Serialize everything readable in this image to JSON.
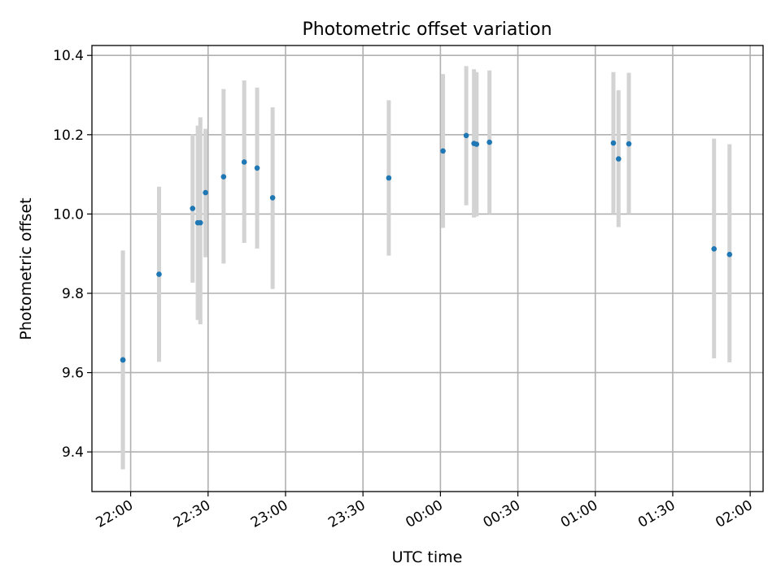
{
  "chart_data": {
    "type": "scatter",
    "title": "Photometric offset variation",
    "xlabel": "UTC time",
    "ylabel": "Photometric offset",
    "x_unit": "UTC time of day (hours since 22:00)",
    "xlim": [
      "21:45",
      "02:05"
    ],
    "ylim": [
      9.3,
      10.425
    ],
    "x_ticks": [
      {
        "label": "22:00",
        "value": "22:00"
      },
      {
        "label": "22:30",
        "value": "22:30"
      },
      {
        "label": "23:00",
        "value": "23:00"
      },
      {
        "label": "23:30",
        "value": "23:30"
      },
      {
        "label": "00:00",
        "value": "00:00"
      },
      {
        "label": "00:30",
        "value": "00:30"
      },
      {
        "label": "01:00",
        "value": "01:00"
      },
      {
        "label": "01:30",
        "value": "01:30"
      },
      {
        "label": "02:00",
        "value": "02:00"
      }
    ],
    "y_ticks": [
      {
        "label": "9.4",
        "value": 9.4
      },
      {
        "label": "9.6",
        "value": 9.6
      },
      {
        "label": "9.8",
        "value": 9.8
      },
      {
        "label": "10.0",
        "value": 10.0
      },
      {
        "label": "10.2",
        "value": 10.2
      },
      {
        "label": "10.4",
        "value": 10.4
      }
    ],
    "grid": true,
    "x_tick_rotation": 30,
    "colors": {
      "marker": "#1f77b4",
      "errorbar": "#d3d3d3",
      "grid": "#b0b0b0",
      "axes": "#000000"
    },
    "series": [
      {
        "points": [
          {
            "x": "21:57",
            "y": 9.632,
            "ylow": 9.358,
            "yhigh": 9.906
          },
          {
            "x": "21:57",
            "y": 9.632,
            "ylow": 9.356,
            "yhigh": 9.908
          },
          {
            "x": "22:11",
            "y": 9.848,
            "ylow": 9.627,
            "yhigh": 10.069
          },
          {
            "x": "22:24",
            "y": 10.014,
            "ylow": 9.827,
            "yhigh": 10.201
          },
          {
            "x": "22:26",
            "y": 9.978,
            "ylow": 9.733,
            "yhigh": 10.223
          },
          {
            "x": "22:27",
            "y": 9.978,
            "ylow": 9.722,
            "yhigh": 10.244
          },
          {
            "x": "22:29",
            "y": 10.054,
            "ylow": 9.891,
            "yhigh": 10.215
          },
          {
            "x": "22:36",
            "y": 10.094,
            "ylow": 9.875,
            "yhigh": 10.315
          },
          {
            "x": "22:44",
            "y": 10.131,
            "ylow": 9.927,
            "yhigh": 10.337
          },
          {
            "x": "22:49",
            "y": 10.116,
            "ylow": 9.913,
            "yhigh": 10.319
          },
          {
            "x": "22:55",
            "y": 10.041,
            "ylow": 9.811,
            "yhigh": 10.269
          },
          {
            "x": "23:40",
            "y": 10.091,
            "ylow": 9.895,
            "yhigh": 10.287
          },
          {
            "x": "00:01",
            "y": 10.159,
            "ylow": 9.965,
            "yhigh": 10.353
          },
          {
            "x": "00:10",
            "y": 10.198,
            "ylow": 10.022,
            "yhigh": 10.373
          },
          {
            "x": "00:13",
            "y": 10.178,
            "ylow": 9.991,
            "yhigh": 10.365
          },
          {
            "x": "00:14",
            "y": 10.176,
            "ylow": 9.994,
            "yhigh": 10.358
          },
          {
            "x": "00:19",
            "y": 10.181,
            "ylow": 10.0,
            "yhigh": 10.362
          },
          {
            "x": "01:07",
            "y": 10.179,
            "ylow": 10.0,
            "yhigh": 10.358
          },
          {
            "x": "01:09",
            "y": 10.139,
            "ylow": 9.967,
            "yhigh": 10.312
          },
          {
            "x": "01:13",
            "y": 10.177,
            "ylow": 10.0,
            "yhigh": 10.356
          },
          {
            "x": "01:46",
            "y": 9.912,
            "ylow": 9.636,
            "yhigh": 10.19
          },
          {
            "x": "01:52",
            "y": 9.898,
            "ylow": 9.626,
            "yhigh": 10.176
          }
        ]
      }
    ]
  }
}
